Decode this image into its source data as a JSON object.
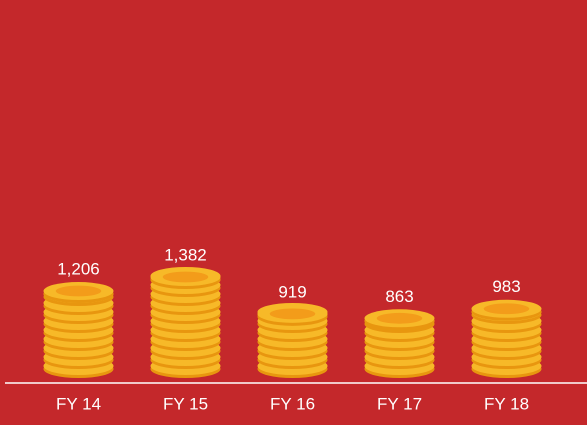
{
  "chart_data": {
    "type": "coin-stack",
    "categories": [
      "FY 14",
      "FY 15",
      "FY 16",
      "FY 17",
      "FY 18"
    ],
    "values": [
      1206,
      1382,
      919,
      863,
      983
    ],
    "value_labels": [
      "1,206",
      "1,382",
      "919",
      "863",
      "983"
    ],
    "color": "#f7b928"
  }
}
